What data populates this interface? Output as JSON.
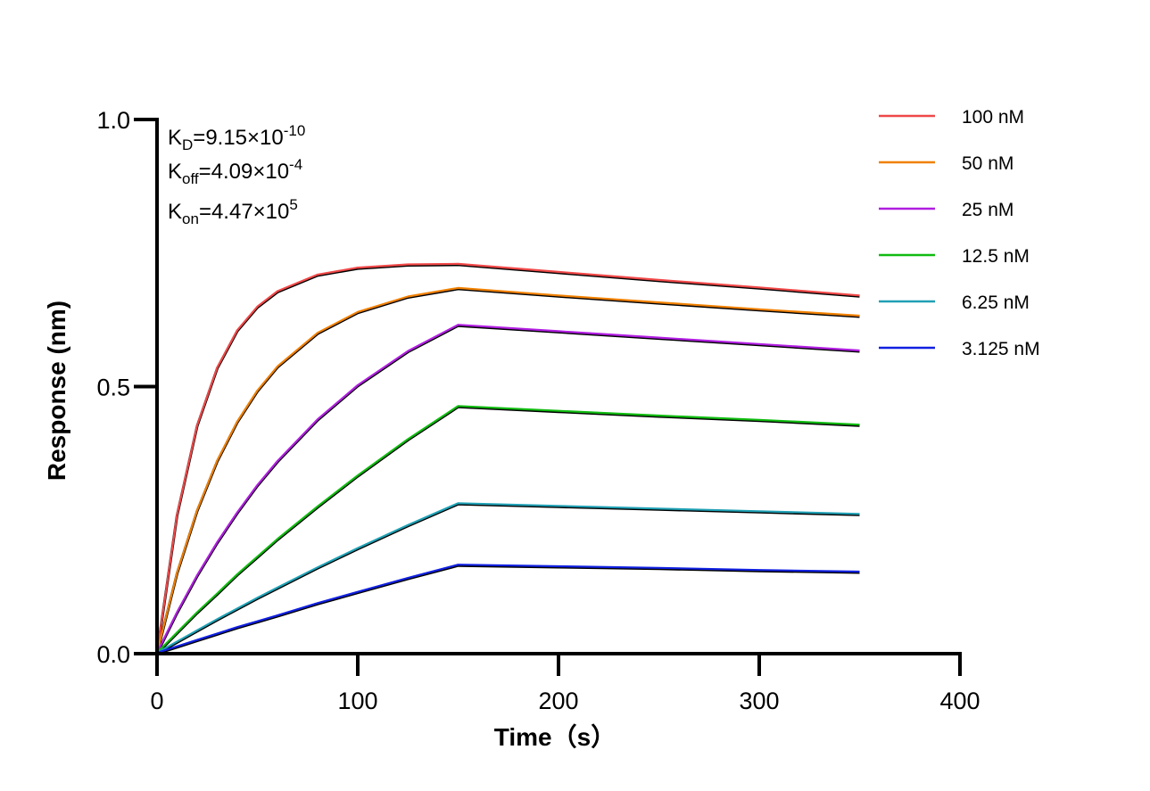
{
  "chart_data": {
    "type": "line",
    "xlabel": "Time（s）",
    "ylabel": "Response (nm)",
    "xlim": [
      0,
      400
    ],
    "ylim": [
      0,
      1.0
    ],
    "xticks": [
      "0",
      "100",
      "200",
      "300",
      "400"
    ],
    "yticks": [
      "0.0",
      "0.5",
      "1.0"
    ],
    "grid": false,
    "legend_position": "right",
    "annotations": [
      {
        "main": "K",
        "sub": "D",
        "value": "=9.15×10",
        "sup": "-10"
      },
      {
        "main": "K",
        "sub": "off",
        "value": "=4.09×10",
        "sup": "-4"
      },
      {
        "main": "K",
        "sub": "on",
        "value": "=4.47×10",
        "sup": "5"
      }
    ],
    "x": [
      0,
      10,
      20,
      30,
      40,
      50,
      60,
      80,
      100,
      125,
      150,
      200,
      250,
      300,
      350
    ],
    "series": [
      {
        "name": "100 nM",
        "color": "#f04848",
        "values": [
          0,
          0.259,
          0.426,
          0.534,
          0.604,
          0.648,
          0.677,
          0.708,
          0.721,
          0.727,
          0.728,
          0.713,
          0.698,
          0.684,
          0.669
        ]
      },
      {
        "name": "50 nM",
        "color": "#f08000",
        "values": [
          0,
          0.15,
          0.267,
          0.36,
          0.433,
          0.491,
          0.536,
          0.599,
          0.638,
          0.667,
          0.683,
          0.669,
          0.656,
          0.643,
          0.631
        ]
      },
      {
        "name": "25 nM",
        "color": "#b01ee0",
        "values": [
          0,
          0.076,
          0.145,
          0.207,
          0.263,
          0.314,
          0.359,
          0.437,
          0.501,
          0.565,
          0.614,
          0.602,
          0.59,
          0.578,
          0.566
        ]
      },
      {
        "name": "12.5 nM",
        "color": "#10bb10",
        "values": [
          0,
          0.038,
          0.076,
          0.111,
          0.147,
          0.18,
          0.213,
          0.274,
          0.332,
          0.4,
          0.462,
          0.453,
          0.444,
          0.436,
          0.427
        ]
      },
      {
        "name": "6.25 nM",
        "color": "#1fa0b4",
        "values": [
          0,
          0.021,
          0.042,
          0.063,
          0.083,
          0.103,
          0.122,
          0.16,
          0.196,
          0.239,
          0.28,
          0.275,
          0.27,
          0.265,
          0.26
        ]
      },
      {
        "name": "3.125 nM",
        "color": "#1020e0",
        "values": [
          0,
          0.012,
          0.024,
          0.036,
          0.048,
          0.059,
          0.07,
          0.093,
          0.114,
          0.14,
          0.165,
          0.162,
          0.159,
          0.155,
          0.152
        ]
      }
    ],
    "fit_color": "#000000"
  }
}
